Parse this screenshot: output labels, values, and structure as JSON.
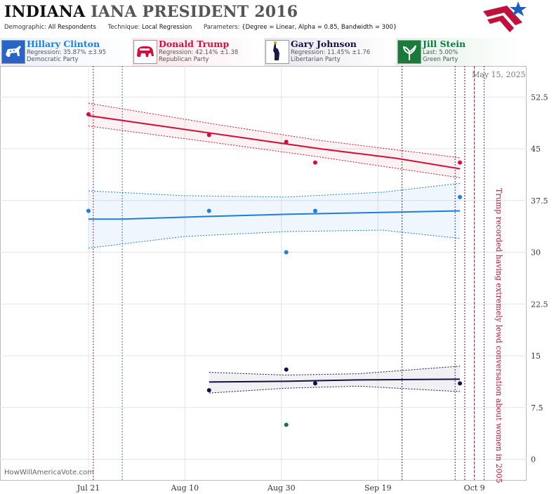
{
  "header": {
    "title_part1": "INDIANA",
    "title_part2": "IANA PRESIDENT 2016",
    "demographic_label": "Demographic:",
    "demographic_value": "All Respondents",
    "technique_label": "Technique:",
    "technique_value": "Local Regression",
    "parameters_label": "Parameters:",
    "parameters_value": "{Degree = Linear, Alpha = 0.85, Bandwidth = 300}"
  },
  "candidates": [
    {
      "name": "Hillary Clinton",
      "regression": "Regression: 35.87% ±3.95",
      "party": "Democratic Party",
      "color": "#1e7de0",
      "icon": "donkey-icon"
    },
    {
      "name": "Donald Trump",
      "regression": "Regression: 42.14% ±1.38",
      "party": "Republican Party",
      "color": "#d0103a",
      "icon": "elephant-icon"
    },
    {
      "name": "Gary Johnson",
      "regression": "Regression: 11.45% ±1.76",
      "party": "Libertarian Party",
      "color": "#111144",
      "icon": "liberty-statue-icon"
    },
    {
      "name": "Jill Stein",
      "regression": "Last: 5.00%",
      "party": "Green Party",
      "color": "#0a7a3a",
      "icon": "plant-icon"
    }
  ],
  "date_label": "May 15, 2025",
  "annotation": "Trump recorded having extremely lewd conversation about women in 2005",
  "watermark": "HowWillAmericaVote.com",
  "chart_data": {
    "type": "line",
    "x_ticks": [
      "Jul 21",
      "Aug 10",
      "Aug 30",
      "Sep 19",
      "Oct 9"
    ],
    "x_range": [
      "2016-07-21",
      "2016-10-14"
    ],
    "y_ticks": [
      "0",
      "7.5",
      "15",
      "22.5",
      "30",
      "37.5",
      "45",
      "52.5"
    ],
    "ylim": [
      -3,
      57
    ],
    "grid": true,
    "vertical_markers": [
      {
        "date": "2016-07-22",
        "color": "#9b1b4a",
        "style": "dotted"
      },
      {
        "date": "2016-07-28",
        "color": "#1e7de0",
        "style": "dotted"
      },
      {
        "date": "2016-09-24",
        "color": "#333355",
        "style": "dotted"
      },
      {
        "date": "2016-10-05",
        "color": "#333355",
        "style": "dotted"
      },
      {
        "date": "2016-10-07",
        "color": "#1e7de0",
        "style": "dotted"
      },
      {
        "date": "2016-10-07",
        "color": "#9b1b4a",
        "style": "dotted"
      },
      {
        "date": "2016-10-09",
        "color": "#c0103c",
        "style": "dashed"
      },
      {
        "date": "2016-10-11",
        "color": "#9b1b4a",
        "style": "dotted"
      }
    ],
    "series": [
      {
        "name": "Donald Trump",
        "color": "#d0103a",
        "points": [
          [
            "2016-07-21",
            50
          ],
          [
            "2016-08-15",
            47
          ],
          [
            "2016-08-31",
            46
          ],
          [
            "2016-09-06",
            43
          ],
          [
            "2016-10-06",
            43
          ]
        ],
        "trend": [
          [
            "2016-07-21",
            49.8
          ],
          [
            "2016-08-06",
            48.2
          ],
          [
            "2016-08-22",
            46.6
          ],
          [
            "2016-09-07",
            45.0
          ],
          [
            "2016-09-23",
            43.6
          ],
          [
            "2016-10-06",
            42.1
          ]
        ],
        "band_upper": [
          [
            "2016-07-21",
            51.6
          ],
          [
            "2016-08-15",
            48.7
          ],
          [
            "2016-09-06",
            46.3
          ],
          [
            "2016-10-06",
            43.7
          ]
        ],
        "band_lower": [
          [
            "2016-07-21",
            48.3
          ],
          [
            "2016-08-15",
            46.0
          ],
          [
            "2016-09-06",
            43.9
          ],
          [
            "2016-10-06",
            40.8
          ]
        ]
      },
      {
        "name": "Hillary Clinton",
        "color": "#1e7de0",
        "points": [
          [
            "2016-07-21",
            36
          ],
          [
            "2016-08-15",
            36
          ],
          [
            "2016-08-31",
            30
          ],
          [
            "2016-09-06",
            36
          ],
          [
            "2016-10-06",
            38
          ]
        ],
        "trend": [
          [
            "2016-07-21",
            34.8
          ],
          [
            "2016-07-28",
            34.8
          ],
          [
            "2016-08-15",
            35.2
          ],
          [
            "2016-08-31",
            35.5
          ],
          [
            "2016-09-15",
            35.7
          ],
          [
            "2016-10-06",
            36.0
          ]
        ],
        "band_upper": [
          [
            "2016-07-21",
            38.9
          ],
          [
            "2016-08-10",
            38.2
          ],
          [
            "2016-08-31",
            38.0
          ],
          [
            "2016-09-20",
            38.7
          ],
          [
            "2016-10-06",
            40.0
          ]
        ],
        "band_lower": [
          [
            "2016-07-21",
            30.6
          ],
          [
            "2016-08-10",
            32.3
          ],
          [
            "2016-08-31",
            33.0
          ],
          [
            "2016-09-20",
            33.2
          ],
          [
            "2016-10-06",
            32.0
          ]
        ]
      },
      {
        "name": "Gary Johnson",
        "color": "#111144",
        "points": [
          [
            "2016-08-15",
            10
          ],
          [
            "2016-08-31",
            13
          ],
          [
            "2016-09-06",
            11
          ],
          [
            "2016-10-06",
            11
          ]
        ],
        "trend": [
          [
            "2016-08-15",
            11.2
          ],
          [
            "2016-08-31",
            11.3
          ],
          [
            "2016-09-15",
            11.5
          ],
          [
            "2016-10-06",
            11.6
          ]
        ],
        "band_upper": [
          [
            "2016-08-15",
            12.6
          ],
          [
            "2016-08-31",
            12.2
          ],
          [
            "2016-09-15",
            12.4
          ],
          [
            "2016-10-06",
            13.5
          ]
        ],
        "band_lower": [
          [
            "2016-08-15",
            9.6
          ],
          [
            "2016-08-31",
            10.3
          ],
          [
            "2016-09-15",
            10.6
          ],
          [
            "2016-10-06",
            9.8
          ]
        ]
      },
      {
        "name": "Jill Stein",
        "color": "#0a7a3a",
        "points": [
          [
            "2016-08-31",
            5
          ]
        ]
      }
    ]
  }
}
